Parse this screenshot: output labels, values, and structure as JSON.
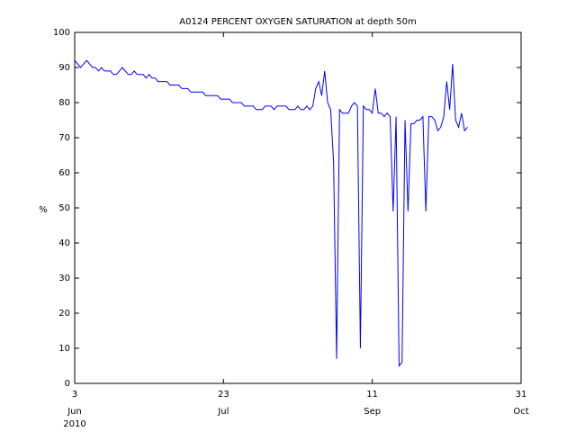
{
  "chart_data": {
    "type": "line",
    "title": "A0124 PERCENT OXYGEN SATURATION at depth 50m",
    "ylabel": "%",
    "year_label": "2010",
    "x": [
      "2010-06-03",
      "2010-06-04",
      "2010-06-05",
      "2010-06-06",
      "2010-06-07",
      "2010-06-08",
      "2010-06-09",
      "2010-06-10",
      "2010-06-11",
      "2010-06-12",
      "2010-06-13",
      "2010-06-14",
      "2010-06-15",
      "2010-06-16",
      "2010-06-17",
      "2010-06-18",
      "2010-06-19",
      "2010-06-20",
      "2010-06-21",
      "2010-06-22",
      "2010-06-23",
      "2010-06-24",
      "2010-06-25",
      "2010-06-26",
      "2010-06-27",
      "2010-06-28",
      "2010-06-29",
      "2010-06-30",
      "2010-07-01",
      "2010-07-02",
      "2010-07-03",
      "2010-07-04",
      "2010-07-05",
      "2010-07-06",
      "2010-07-07",
      "2010-07-08",
      "2010-07-09",
      "2010-07-10",
      "2010-07-11",
      "2010-07-12",
      "2010-07-13",
      "2010-07-14",
      "2010-07-15",
      "2010-07-16",
      "2010-07-17",
      "2010-07-18",
      "2010-07-19",
      "2010-07-20",
      "2010-07-21",
      "2010-07-22",
      "2010-07-23",
      "2010-07-24",
      "2010-07-25",
      "2010-07-26",
      "2010-07-27",
      "2010-07-28",
      "2010-07-29",
      "2010-07-30",
      "2010-07-31",
      "2010-08-01",
      "2010-08-02",
      "2010-08-03",
      "2010-08-04",
      "2010-08-05",
      "2010-08-06",
      "2010-08-07",
      "2010-08-08",
      "2010-08-09",
      "2010-08-10",
      "2010-08-11",
      "2010-08-12",
      "2010-08-13",
      "2010-08-14",
      "2010-08-15",
      "2010-08-16",
      "2010-08-17",
      "2010-08-18",
      "2010-08-19",
      "2010-08-20",
      "2010-08-21",
      "2010-08-22",
      "2010-08-23",
      "2010-08-24",
      "2010-08-25",
      "2010-08-26",
      "2010-08-27",
      "2010-08-28",
      "2010-08-29",
      "2010-08-30",
      "2010-08-31",
      "2010-09-01",
      "2010-09-02",
      "2010-09-03",
      "2010-09-04",
      "2010-09-05",
      "2010-09-06",
      "2010-09-07",
      "2010-09-08",
      "2010-09-09",
      "2010-09-10",
      "2010-09-11",
      "2010-09-12",
      "2010-09-13",
      "2010-09-14",
      "2010-09-15",
      "2010-09-16",
      "2010-09-17",
      "2010-09-18",
      "2010-09-19",
      "2010-09-20",
      "2010-09-21",
      "2010-09-22",
      "2010-09-23",
      "2010-09-24",
      "2010-09-25",
      "2010-09-26",
      "2010-09-27",
      "2010-09-28",
      "2010-09-29",
      "2010-09-30",
      "2010-10-01",
      "2010-10-02",
      "2010-10-03",
      "2010-10-04",
      "2010-10-05",
      "2010-10-06",
      "2010-10-07",
      "2010-10-08",
      "2010-10-09",
      "2010-10-10",
      "2010-10-11",
      "2010-10-12",
      "2010-10-13"
    ],
    "series": [
      {
        "color": "#0000ff",
        "values": [
          92,
          91,
          90,
          91,
          92,
          91,
          90,
          90,
          89,
          90,
          89,
          89,
          89,
          88,
          88,
          89,
          90,
          89,
          88,
          88,
          89,
          88,
          88,
          88,
          87,
          88,
          87,
          87,
          86,
          86,
          86,
          86,
          85,
          85,
          85,
          85,
          84,
          84,
          84,
          83,
          83,
          83,
          83,
          83,
          82,
          82,
          82,
          82,
          82,
          81,
          81,
          81,
          81,
          80,
          80,
          80,
          80,
          79,
          79,
          79,
          79,
          78,
          78,
          78,
          79,
          79,
          79,
          78,
          79,
          79,
          79,
          79,
          78,
          78,
          78,
          79,
          78,
          78,
          79,
          78,
          79,
          84,
          86,
          82,
          89,
          80,
          78,
          63,
          7,
          78,
          77,
          77,
          77,
          79,
          80,
          79,
          10,
          79,
          78,
          78,
          77,
          84,
          77,
          77,
          76,
          77,
          76,
          49,
          76,
          5,
          6,
          75,
          49,
          74,
          74,
          75,
          75,
          76,
          49,
          76,
          76,
          75,
          72,
          73,
          76,
          86,
          78,
          91,
          75,
          73,
          77,
          72,
          73
        ]
      }
    ],
    "xlim": [
      "2010-06-03",
      "2010-10-31"
    ],
    "xticks": [
      {
        "value": "2010-06-03",
        "label": "3",
        "month": "Jun"
      },
      {
        "value": "2010-07-23",
        "label": "23",
        "month": "Jul"
      },
      {
        "value": "2010-09-11",
        "label": "11",
        "month": "Sep"
      },
      {
        "value": "2010-10-31",
        "label": "31",
        "month": "Oct"
      }
    ],
    "ylim": [
      0,
      100
    ],
    "yticks": [
      0,
      10,
      20,
      30,
      40,
      50,
      60,
      70,
      80,
      90,
      100
    ]
  }
}
